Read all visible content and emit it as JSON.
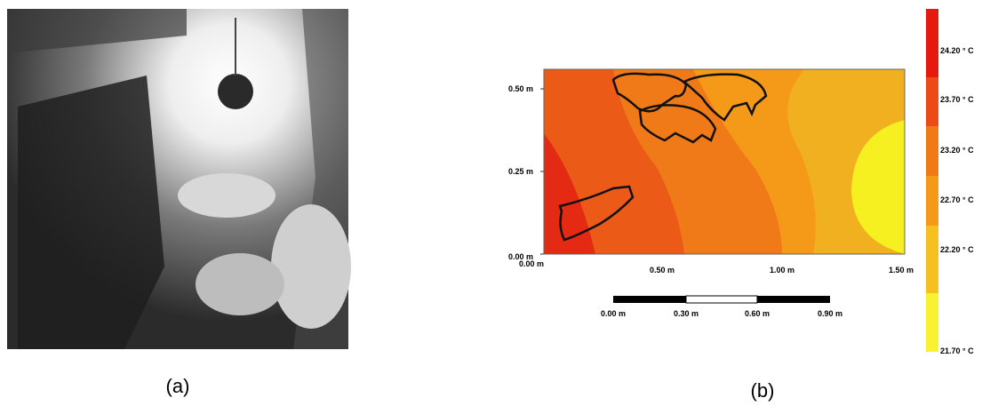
{
  "panel_a": {
    "caption": "(a)"
  },
  "panel_b": {
    "caption": "(b)",
    "y_tick_labels": [
      "0.50 m",
      "0.25 m",
      "0.00 m"
    ],
    "x_tick_labels": [
      "0.00 m",
      "0.50 m",
      "1.00 m",
      "1.50 m"
    ],
    "scale_bar_labels": [
      "0.00 m",
      "0.30 m",
      "0.60 m",
      "0.90 m"
    ],
    "colorbar_labels": [
      "24.20 ° C",
      "23.70 ° C",
      "23.20 ° C",
      "22.70 ° C",
      "22.20 ° C",
      "21.70 ° C"
    ]
  }
}
